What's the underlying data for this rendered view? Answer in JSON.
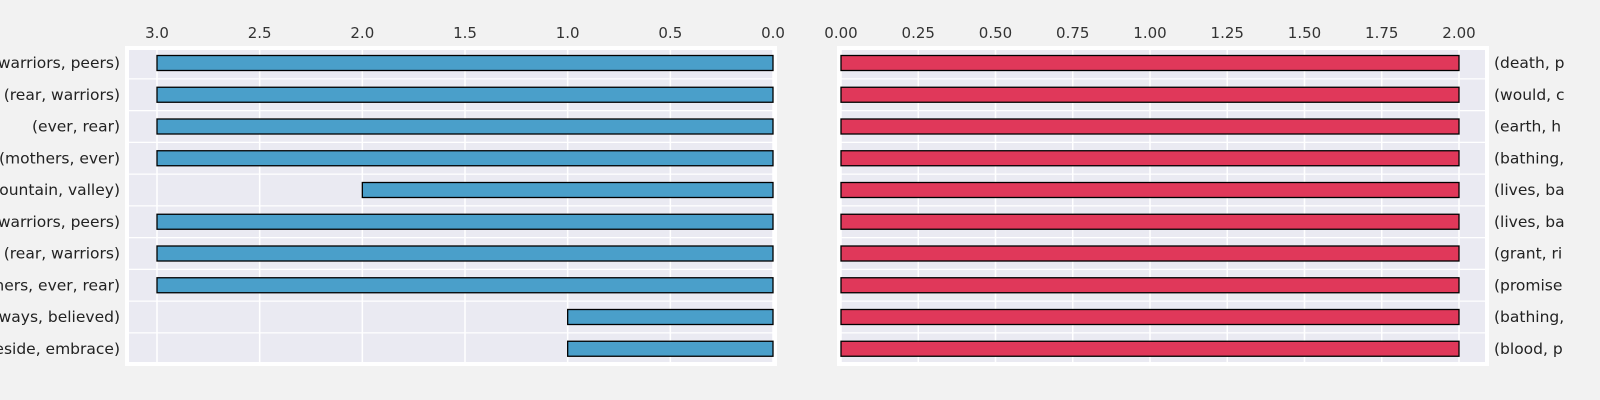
{
  "chart_data": [
    {
      "type": "bar",
      "orientation": "horizontal",
      "inverted_x": true,
      "labels_side": "left",
      "categories": [
        "(warriors, peers)",
        "(rear, warriors)",
        "(ever, rear)",
        "(mothers, ever)",
        "(mountain, valley)",
        "(warriors, peers)",
        "(rear, warriors)",
        "(mothers, ever, rear)",
        "(always, believed)",
        "(beside, embrace)"
      ],
      "values": [
        3,
        3,
        3,
        3,
        2,
        3,
        3,
        3,
        1,
        1
      ],
      "xlim": [
        3.0,
        0.0
      ],
      "xticks": [
        "3.0",
        "2.5",
        "2.0",
        "1.5",
        "1.0",
        "0.5",
        "0.0"
      ],
      "xtick_values": [
        3.0,
        2.5,
        2.0,
        1.5,
        1.0,
        0.5,
        0.0
      ],
      "bar_color": "#4a9fca",
      "grid": true
    },
    {
      "type": "bar",
      "orientation": "horizontal",
      "inverted_x": false,
      "labels_side": "right",
      "categories": [
        "(death, p",
        "(would, c",
        "(earth, h",
        "(bathing,",
        "(lives, ba",
        "(lives, ba",
        "(grant, ri",
        "(promise",
        "(bathing,",
        "(blood, p"
      ],
      "values": [
        2,
        2,
        2,
        2,
        2,
        2,
        2,
        2,
        2,
        2
      ],
      "xlim": [
        0.0,
        2.0
      ],
      "xticks": [
        "0.00",
        "0.25",
        "0.50",
        "0.75",
        "1.00",
        "1.25",
        "1.50",
        "1.75",
        "2.00"
      ],
      "xtick_values": [
        0.0,
        0.25,
        0.5,
        0.75,
        1.0,
        1.25,
        1.5,
        1.75,
        2.0
      ],
      "bar_color": "#e0385a",
      "grid": true
    }
  ]
}
